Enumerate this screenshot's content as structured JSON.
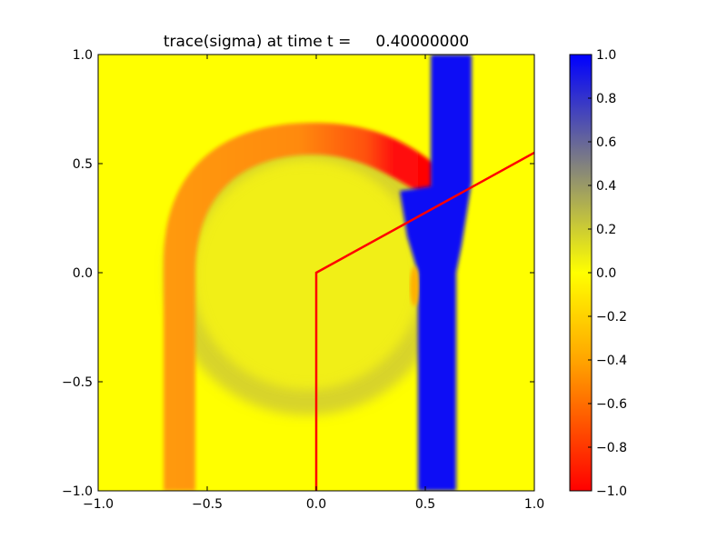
{
  "chart_data": {
    "type": "heatmap",
    "title": "trace(sigma) at time t =     0.40000000",
    "xlim": [
      -1.0,
      1.0
    ],
    "ylim": [
      -1.0,
      1.0
    ],
    "xticks": [
      "−1.0",
      "−0.5",
      "0.0",
      "0.5",
      "1.0"
    ],
    "xtick_values": [
      -1.0,
      -0.5,
      0.0,
      0.5,
      1.0
    ],
    "yticks": [
      "−1.0",
      "−0.5",
      "0.0",
      "0.5",
      "1.0"
    ],
    "ytick_values": [
      -1.0,
      -0.5,
      0.0,
      0.5,
      1.0
    ],
    "colorbar": {
      "range": [
        -1.0,
        1.0
      ],
      "ticks": [
        "1.0",
        "0.8",
        "0.6",
        "0.4",
        "0.2",
        "0.0",
        "−0.2",
        "−0.4",
        "−0.6",
        "−0.8",
        "−1.0"
      ],
      "tick_values": [
        1.0,
        0.8,
        0.6,
        0.4,
        0.2,
        0.0,
        -0.2,
        -0.4,
        -0.6,
        -0.8,
        -1.0
      ],
      "colors": {
        "max": "#0000ff",
        "mid_high": "#808080",
        "zero": "#ffff00",
        "mid_low": "#ffa500",
        "min": "#ff0000"
      }
    },
    "overlay_line": {
      "color": "#ff0000",
      "x": [
        0.0,
        0.0,
        1.0
      ],
      "y": [
        -1.0,
        0.0,
        0.55
      ]
    }
  }
}
